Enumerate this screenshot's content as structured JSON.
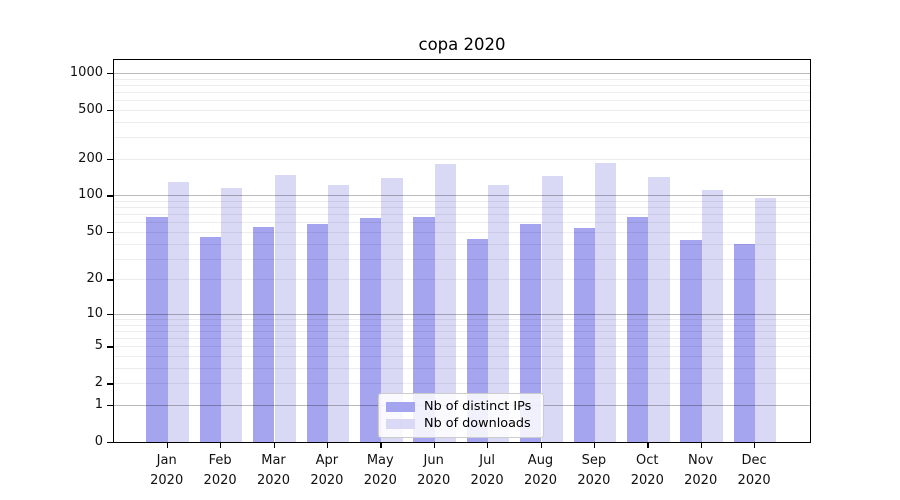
{
  "chart_data": {
    "type": "bar",
    "title": "copa 2020",
    "categories": [
      "Jan",
      "Feb",
      "Mar",
      "Apr",
      "May",
      "Jun",
      "Jul",
      "Aug",
      "Sep",
      "Oct",
      "Nov",
      "Dec"
    ],
    "category_year": "2020",
    "series": [
      {
        "name": "Nb of distinct IPs",
        "color": "#a4a4ef",
        "values": [
          66,
          45,
          55,
          58,
          65,
          67,
          44,
          58,
          54,
          66,
          43,
          40
        ]
      },
      {
        "name": "Nb of downloads",
        "color": "#d9d9f6",
        "values": [
          130,
          115,
          147,
          121,
          140,
          180,
          121,
          144,
          186,
          143,
          110,
          96
        ]
      }
    ],
    "yscale": "log1p",
    "yticks": [
      0,
      1,
      2,
      5,
      10,
      20,
      50,
      100,
      200,
      500,
      1000
    ],
    "ylim": [
      0,
      1300
    ],
    "xlabel": "",
    "ylabel": "",
    "grid": "on (major + minor, drawn over bars)",
    "legend_position": "lower center"
  }
}
